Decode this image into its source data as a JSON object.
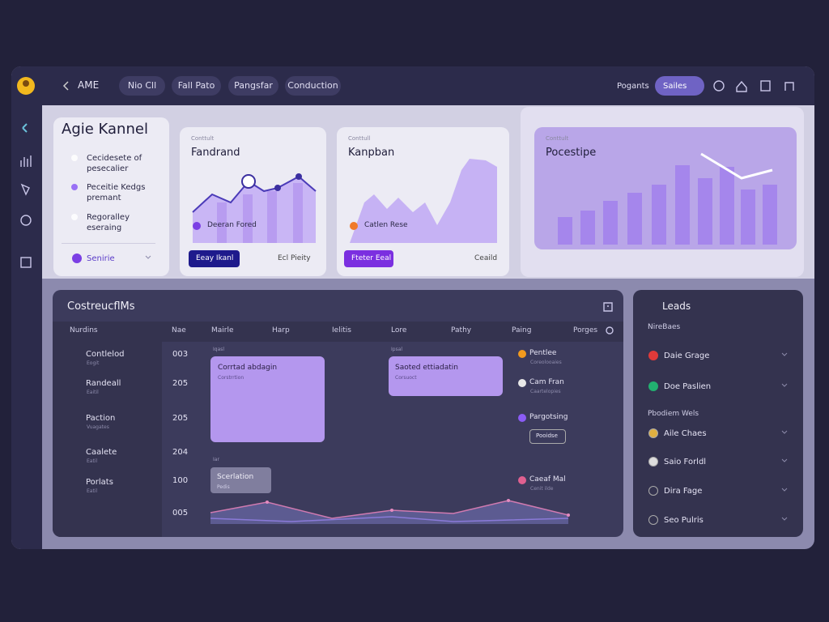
{
  "header": {
    "back": "AME",
    "tabs": [
      "Nio Cll",
      "Fall Pato",
      "Pangsfar",
      "Conduction"
    ],
    "link": "Pogants",
    "search": "Sailes"
  },
  "side_panel": {
    "title": "Agie Kannel",
    "items": [
      {
        "title": "Cecidesete of",
        "sub": "pesecalier"
      },
      {
        "title": "Peceitie Kedgs",
        "sub": "premant"
      },
      {
        "title": "Regoralley",
        "sub": "eseraing"
      }
    ],
    "footer": "Senirie"
  },
  "cards": [
    {
      "label": "Conttult",
      "title": "Fandrand",
      "legend": "Deeran Fored",
      "button": "Eeay Ikanl",
      "link": "Ecl Pieity"
    },
    {
      "label": "Conttull",
      "title": "Kanpban",
      "legend": "Catlen Rese",
      "button": "Fteter Eeal",
      "link": "Ceaild"
    },
    {
      "label": "Conttult",
      "title": "Pocestipe"
    }
  ],
  "board": {
    "title": "CostreucflMs",
    "columns": [
      "Nurdins",
      "Nae",
      "Mairle",
      "Harp",
      "Ielitis",
      "Lore",
      "Pathy",
      "Paing",
      "Porges"
    ],
    "rows": [
      {
        "name": "Contlelod",
        "sub": "Eogit"
      },
      {
        "name": "Randeall",
        "sub": "Eaitil"
      },
      {
        "name": "Paction",
        "sub": "Vuagates"
      },
      {
        "name": "Caalete",
        "sub": "Eatil"
      },
      {
        "name": "Porlats",
        "sub": "Eatil"
      }
    ],
    "numbers": [
      "003",
      "205",
      "205",
      "204",
      "100",
      "005"
    ],
    "tasks": [
      {
        "tag": "Iqasl",
        "title": "Corrtad abdagin",
        "sub": "Corstrrtion"
      },
      {
        "tag": "Ipsal",
        "title": "Saoted ettiadatin",
        "sub": "Corsuoct"
      },
      {
        "tag": "Iar",
        "title": "Scerlation",
        "sub": "Pedis"
      }
    ],
    "events": [
      {
        "title": "Pentlee",
        "sub": "Coreolooaies"
      },
      {
        "title": "Cam Fran",
        "sub": "Caartelopies"
      },
      {
        "title": "Pargotsing",
        "button": "Pooidse"
      },
      {
        "title": "Caeaf Mal",
        "sub": "Cenit ilde"
      }
    ]
  },
  "leads": {
    "title": "Leads",
    "section1": "NireBaes",
    "items1": [
      "Daie Grage",
      "Doe Paslien"
    ],
    "section2": "Pbodiem Wels",
    "items2": [
      "Aile Chaes",
      "Saio Forldl",
      "Dira Fage",
      "Seo Pulris"
    ]
  }
}
